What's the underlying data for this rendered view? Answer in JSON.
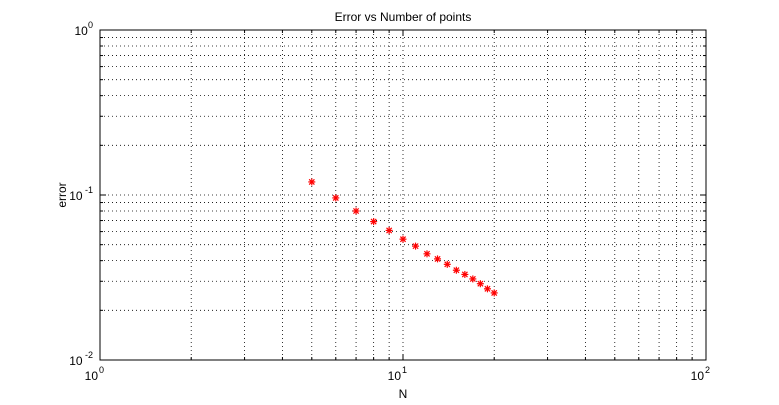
{
  "chart_data": {
    "type": "scatter",
    "title": "Error vs Number of points",
    "xlabel": "N",
    "ylabel": "error",
    "xscale": "log",
    "yscale": "log",
    "xlim": [
      1,
      100
    ],
    "ylim": [
      0.01,
      1
    ],
    "grid": true,
    "x_ticks": [
      {
        "value": 1,
        "base": "10",
        "exp": "0"
      },
      {
        "value": 10,
        "base": "10",
        "exp": "1"
      },
      {
        "value": 100,
        "base": "10",
        "exp": "2"
      }
    ],
    "y_ticks": [
      {
        "value": 0.01,
        "base": "10",
        "exp": "-2"
      },
      {
        "value": 0.1,
        "base": "10",
        "exp": "-1"
      },
      {
        "value": 1,
        "base": "10",
        "exp": "0"
      }
    ],
    "series": [
      {
        "marker": "asterisk",
        "color": "#ff0000",
        "x": [
          5,
          6,
          7,
          8,
          9,
          10,
          11,
          12,
          13,
          14,
          15,
          16,
          17,
          18,
          19,
          20
        ],
        "y": [
          0.12,
          0.096,
          0.08,
          0.069,
          0.061,
          0.054,
          0.049,
          0.044,
          0.041,
          0.038,
          0.035,
          0.033,
          0.031,
          0.029,
          0.027,
          0.0255
        ]
      }
    ]
  }
}
